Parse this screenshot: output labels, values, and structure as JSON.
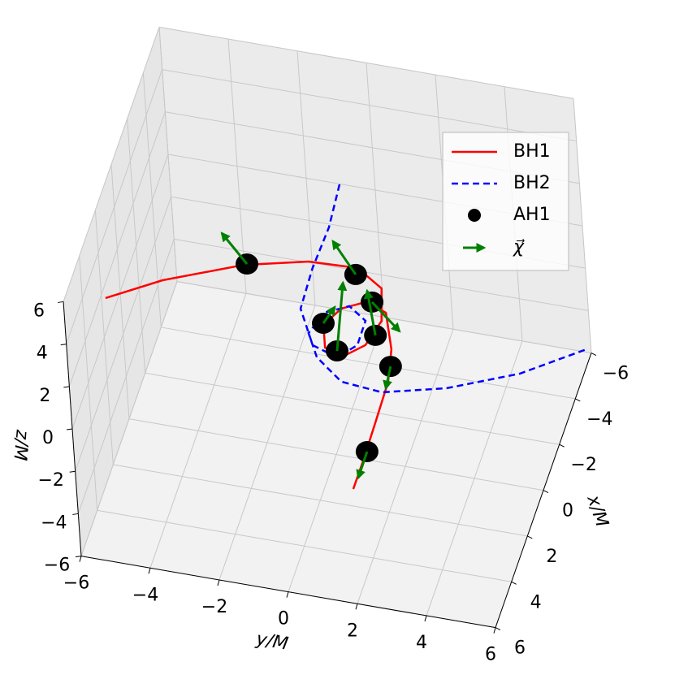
{
  "chart_data": {
    "type": "line3d",
    "xlabel": "x/M",
    "ylabel": "y/M",
    "zlabel": "z/M",
    "xlim": [
      -6,
      6
    ],
    "ylim": [
      -6,
      6
    ],
    "zlim": [
      -6,
      6
    ],
    "xticks": [
      {
        "value": -6,
        "label": "−6"
      },
      {
        "value": -4,
        "label": "−4"
      },
      {
        "value": -2,
        "label": "−2"
      },
      0,
      2,
      4,
      6
    ],
    "yticks": [
      {
        "value": -6,
        "label": "−6"
      },
      {
        "value": -4,
        "label": "−4"
      },
      {
        "value": -2,
        "label": "−2"
      },
      0,
      2,
      4,
      6
    ],
    "zticks": [
      {
        "value": -6,
        "label": "−6"
      },
      {
        "value": -4,
        "label": "−4"
      },
      {
        "value": -2,
        "label": "−2"
      },
      0,
      2,
      4,
      6
    ],
    "grid": true,
    "legend": "upper right",
    "series": [
      {
        "name": "BH1",
        "color": "#ff0000",
        "style": "solid",
        "x": [
          0.37,
          -0.77,
          -1.98,
          -2.58,
          -2.66,
          -1.99,
          -0.65,
          0.46,
          1.14,
          0.85,
          -0.07,
          -0.87,
          -1.31,
          -1.02,
          0.45,
          1.81,
          3.58,
          5.17,
          6.48
        ],
        "y": [
          -6.34,
          -4.95,
          -2.88,
          -1.14,
          0.26,
          1.11,
          1.42,
          1.21,
          0.66,
          0.13,
          -0.13,
          0.2,
          0.8,
          1.46,
          1.96,
          2.18,
          2.22,
          2.25,
          2.25
        ],
        "z": [
          0,
          0,
          0,
          0,
          0,
          0,
          0,
          0,
          0,
          0,
          0,
          0,
          0,
          0,
          0,
          0,
          0,
          0,
          0
        ]
      },
      {
        "name": "BH2",
        "color": "#0000ff",
        "style": "dashed",
        "x": [
          -5.98,
          -4.13,
          -2.34,
          -0.58,
          0.84,
          1.17,
          0.52,
          -0.54,
          -1.03,
          -0.59,
          0.37,
          1.31,
          2.14,
          2.29,
          1.66,
          0.54,
          -0.94
        ],
        "y": [
          -1.03,
          -0.91,
          -0.97,
          -0.91,
          -0.23,
          0.55,
          0.99,
          0.98,
          0.4,
          -0.21,
          -0.46,
          0.0,
          0.9,
          2.11,
          3.84,
          5.7,
          7.29
        ],
        "z": [
          0,
          0,
          0,
          0,
          0,
          0,
          0,
          0,
          0,
          0,
          0,
          0,
          0,
          0,
          0,
          0,
          0
        ]
      }
    ],
    "points": {
      "name": "AH1",
      "color": "#000000",
      "x": [
        -2.04,
        -2.38,
        -1.36,
        -0.14,
        -0.01,
        0.9,
        1.16,
        4.84
      ],
      "y": [
        -2.8,
        0.27,
        0.98,
        -0.15,
        1.39,
        0.49,
        2.1,
        2.27
      ],
      "z": [
        0,
        0,
        0,
        0,
        0,
        0,
        0,
        0
      ]
    },
    "arrows": {
      "name": "χ⃗",
      "color": "#008000",
      "u": [
        -1.09,
        -1.21,
        1.01,
        -0.75,
        -1.78,
        -2.85,
        0.94,
        1.14
      ],
      "v": [
        -0.98,
        -0.94,
        1.03,
        0.16,
        -0.65,
        -0.49,
        0.08,
        0.01
      ],
      "w": [
        0,
        0,
        0,
        0,
        0,
        0,
        0,
        0
      ]
    }
  }
}
